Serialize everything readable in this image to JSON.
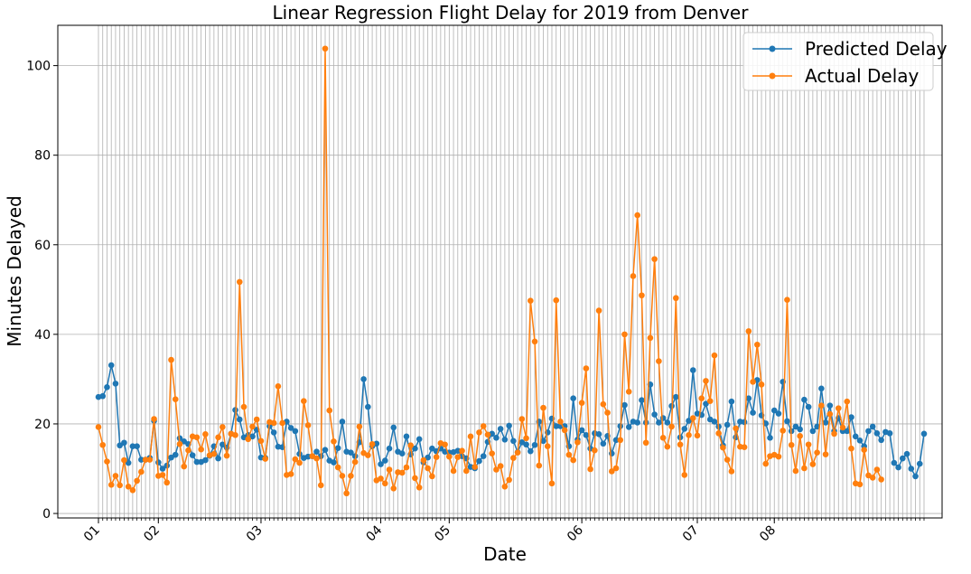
{
  "chart_data": {
    "type": "line",
    "title": "Linear Regression Flight Delay for 2019 from Denver",
    "xlabel": "Date",
    "ylabel": "Minutes Delayed",
    "ylim": [
      -1,
      109
    ],
    "y_ticks": [
      0,
      20,
      40,
      60,
      80,
      100
    ],
    "grid": true,
    "legend_position": "top-right",
    "x_major_labels": [
      {
        "label": "01",
        "index": 0
      },
      {
        "label": "02",
        "index": 14
      },
      {
        "label": "03",
        "index": 38
      },
      {
        "label": "04",
        "index": 66
      },
      {
        "label": "05",
        "index": 82
      },
      {
        "label": "06",
        "index": 113
      },
      {
        "label": "07",
        "index": 140
      },
      {
        "label": "08",
        "index": 158
      }
    ],
    "series": [
      {
        "name": "Predicted Delay",
        "color": "#1f77b4",
        "values": [
          26,
          26.2,
          28.2,
          33.1,
          29,
          15.2,
          15.8,
          11.3,
          15,
          15,
          12,
          12,
          12.4,
          20.7,
          11.4,
          10,
          10.7,
          12.5,
          13.1,
          16.8,
          16.1,
          15.5,
          13,
          11.5,
          11.5,
          11.9,
          12.9,
          15,
          12.3,
          15.4,
          14.7,
          17.8,
          23.1,
          21,
          17,
          17.5,
          17.2,
          18.7,
          12.5,
          12.4,
          19.5,
          18.1,
          14.9,
          14.8,
          20.5,
          19.1,
          18.4,
          13.3,
          12.4,
          12.7,
          12.8,
          13.8,
          12.8,
          14.2,
          11.8,
          11.4,
          14.6,
          20.5,
          13.8,
          13.6,
          12.8,
          15.9,
          30,
          23.8,
          15,
          15.6,
          11,
          11.8,
          14.5,
          19.2,
          13.8,
          13.4,
          17.2,
          13.2,
          14.5,
          16.6,
          11.4,
          12.5,
          14.5,
          13.9,
          14.5,
          13.8,
          13.6,
          13.7,
          14,
          12.8,
          12.3,
          10.4,
          10.1,
          11.7,
          12.8,
          16,
          17.8,
          16.9,
          18.9,
          16.5,
          19.6,
          16.2,
          13.7,
          15.9,
          15.4,
          13.9,
          15.3,
          20.5,
          16.2,
          18.1,
          21.2,
          19.5,
          19.5,
          19.5,
          15,
          25.7,
          16.5,
          18.6,
          17.5,
          14.5,
          17.9,
          17.7,
          15.6,
          17.3,
          13.4,
          16.4,
          19.5,
          24.2,
          19.3,
          20.5,
          20.3,
          25.3,
          20.3,
          28.8,
          22.1,
          20.3,
          21.3,
          20.3,
          24,
          26,
          17,
          18.9,
          20.7,
          32,
          22.3,
          22,
          24.5,
          21,
          20.5,
          19.4,
          15.2,
          19.8,
          25,
          17,
          20.5,
          20.4,
          25.7,
          22.5,
          29.8,
          21.9,
          20.1,
          16.9,
          23,
          22.3,
          29.4,
          20.6,
          18.4,
          19.4,
          18.8,
          25.4,
          23.8,
          18.4,
          19.4,
          27.9,
          20.3,
          24.1,
          18.4,
          21.3,
          18.4,
          18.4,
          21.5,
          17.2,
          16.3,
          15,
          18.4,
          19.4,
          17.9,
          16.4,
          18.2,
          17.9,
          11.3,
          10.3,
          12.3,
          13.3,
          10,
          8.3,
          11.1,
          17.8
        ]
      },
      {
        "name": "Actual Delay",
        "color": "#ff7f0e",
        "values": [
          19.3,
          15.3,
          11.6,
          6.4,
          8.4,
          6.3,
          11.9,
          6,
          5.2,
          7.3,
          9.3,
          12,
          12,
          21.1,
          8.4,
          8.6,
          6.9,
          34.3,
          25.5,
          15.5,
          10.5,
          14.1,
          17.2,
          17,
          14.3,
          17.7,
          13,
          13.3,
          17,
          19.3,
          12.9,
          17.8,
          17.5,
          51.7,
          23.8,
          16.6,
          19.4,
          21,
          16.2,
          12.2,
          20.4,
          20.2,
          28.4,
          20.2,
          8.6,
          8.8,
          12.1,
          11.3,
          25.1,
          19.7,
          12.8,
          12.3,
          6.3,
          103.8,
          23,
          16.1,
          10.3,
          8.4,
          4.5,
          8.4,
          11.5,
          19.4,
          13.5,
          13,
          15.5,
          7.4,
          7.8,
          6.7,
          9.8,
          5.6,
          9.2,
          9.1,
          10.3,
          15.2,
          7.9,
          5.8,
          11.9,
          10.1,
          8.3,
          12.6,
          15.7,
          15.4,
          12.7,
          9.5,
          12.6,
          14,
          9.5,
          17.2,
          10.4,
          18.1,
          19.5,
          17.6,
          13.4,
          9.8,
          10.6,
          6,
          7.5,
          12.4,
          13.6,
          21.1,
          16.8,
          47.5,
          38.4,
          10.7,
          23.6,
          15,
          6.7,
          47.6,
          20.5,
          18.6,
          13.1,
          11.9,
          15.9,
          24.7,
          32.4,
          9.9,
          14.1,
          45.3,
          24.4,
          22.5,
          9.4,
          10.1,
          16.4,
          40,
          27.2,
          53,
          66.6,
          48.7,
          15.8,
          39.2,
          56.8,
          34,
          16.9,
          14.9,
          19.4,
          48.1,
          15.4,
          8.6,
          17.5,
          21.3,
          17.4,
          25.7,
          29.6,
          25.1,
          35.3,
          17.9,
          14.7,
          12,
          9.4,
          19,
          14.9,
          14.8,
          40.7,
          29.4,
          37.7,
          28.8,
          11.1,
          12.8,
          13.1,
          12.7,
          18.5,
          47.7,
          15.3,
          9.5,
          17.3,
          10.1,
          15.4,
          11,
          13.6,
          24.1,
          13.2,
          22.2,
          17.8,
          23.5,
          19.2,
          25,
          14.5,
          6.7,
          6.5,
          14.2,
          8.5,
          8,
          9.8,
          7.6
        ]
      }
    ]
  }
}
